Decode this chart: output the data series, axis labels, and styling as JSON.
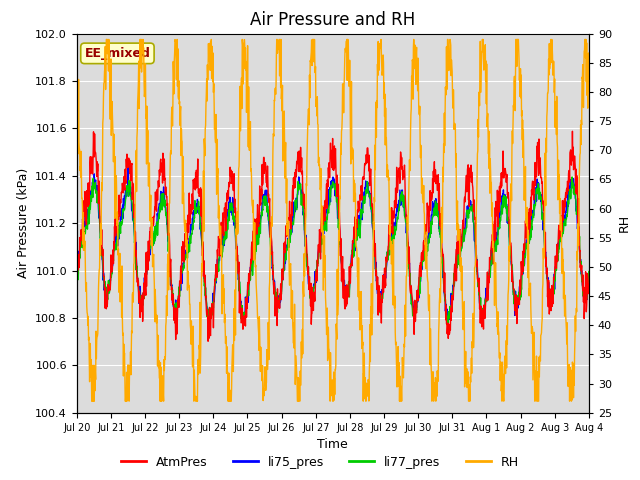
{
  "title": "Air Pressure and RH",
  "xlabel": "Time",
  "ylabel_left": "Air Pressure (kPa)",
  "ylabel_right": "RH",
  "annotation": "EE_mixed",
  "ylim_left": [
    100.4,
    102.0
  ],
  "ylim_right": [
    25,
    90
  ],
  "yticks_left": [
    100.4,
    100.6,
    100.8,
    101.0,
    101.2,
    101.4,
    101.6,
    101.8,
    102.0
  ],
  "yticks_right": [
    25,
    30,
    35,
    40,
    45,
    50,
    55,
    60,
    65,
    70,
    75,
    80,
    85,
    90
  ],
  "xtick_labels": [
    "Jul 20",
    "Jul 21",
    "Jul 22",
    "Jul 23",
    "Jul 24",
    "Jul 25",
    "Jul 26",
    "Jul 27",
    "Jul 28",
    "Jul 29",
    "Jul 30",
    "Jul 31",
    "Aug 1",
    "Aug 2",
    "Aug 3",
    "Aug 4"
  ],
  "colors": {
    "AtmPres": "#ff0000",
    "li75_pres": "#0000ff",
    "li77_pres": "#00cc00",
    "RH": "#ffaa00"
  },
  "bg_color": "#dcdcdc",
  "title_fontsize": 12,
  "label_fontsize": 9,
  "tick_fontsize": 8,
  "linewidth": 1.0
}
